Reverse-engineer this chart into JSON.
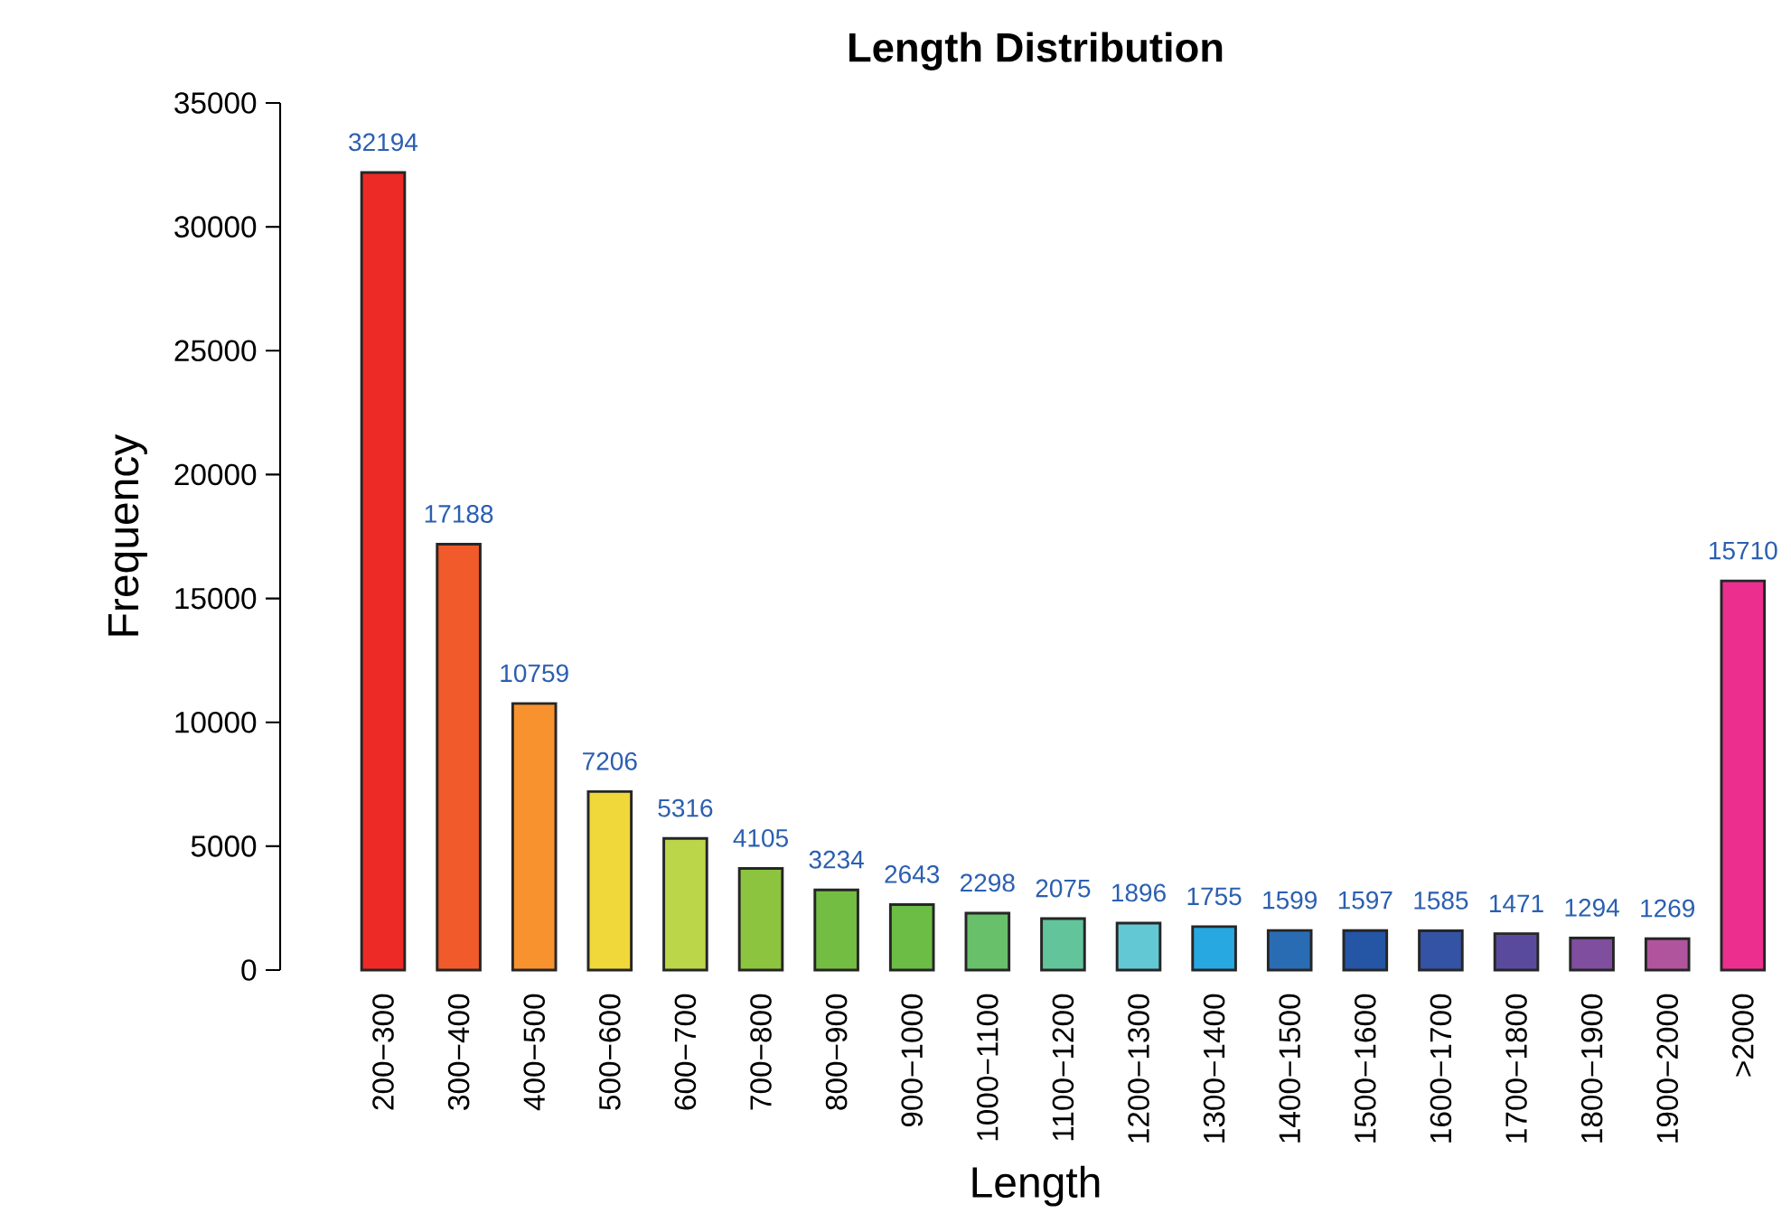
{
  "chart_data": {
    "type": "bar",
    "title": "Length Distribution",
    "xlabel": "Length",
    "ylabel": "Frequency",
    "categories": [
      "200−300",
      "300−400",
      "400−500",
      "500−600",
      "600−700",
      "700−800",
      "800−900",
      "900−1000",
      "1000−1100",
      "1100−1200",
      "1200−1300",
      "1300−1400",
      "1400−1500",
      "1500−1600",
      "1600−1700",
      "1700−1800",
      "1800−1900",
      "1900−2000",
      ">2000"
    ],
    "values": [
      32194,
      17188,
      10759,
      7206,
      5316,
      4105,
      3234,
      2643,
      2298,
      2075,
      1896,
      1755,
      1599,
      1597,
      1585,
      1471,
      1294,
      1269,
      15710
    ],
    "colors": [
      "#ee2a27",
      "#f15a2a",
      "#f7922e",
      "#f0d83a",
      "#bcd64a",
      "#8cc43f",
      "#74bd43",
      "#6bbd45",
      "#68c06b",
      "#62c49a",
      "#62c8d4",
      "#27a8e0",
      "#2a6cb4",
      "#2555a5",
      "#3553a4",
      "#5a4a9e",
      "#7f4e9f",
      "#b0549e",
      "#ec2f8f"
    ],
    "ylim": [
      0,
      35000
    ],
    "yticks": [
      0,
      5000,
      10000,
      15000,
      20000,
      25000,
      30000,
      35000
    ],
    "data_labels": true
  }
}
